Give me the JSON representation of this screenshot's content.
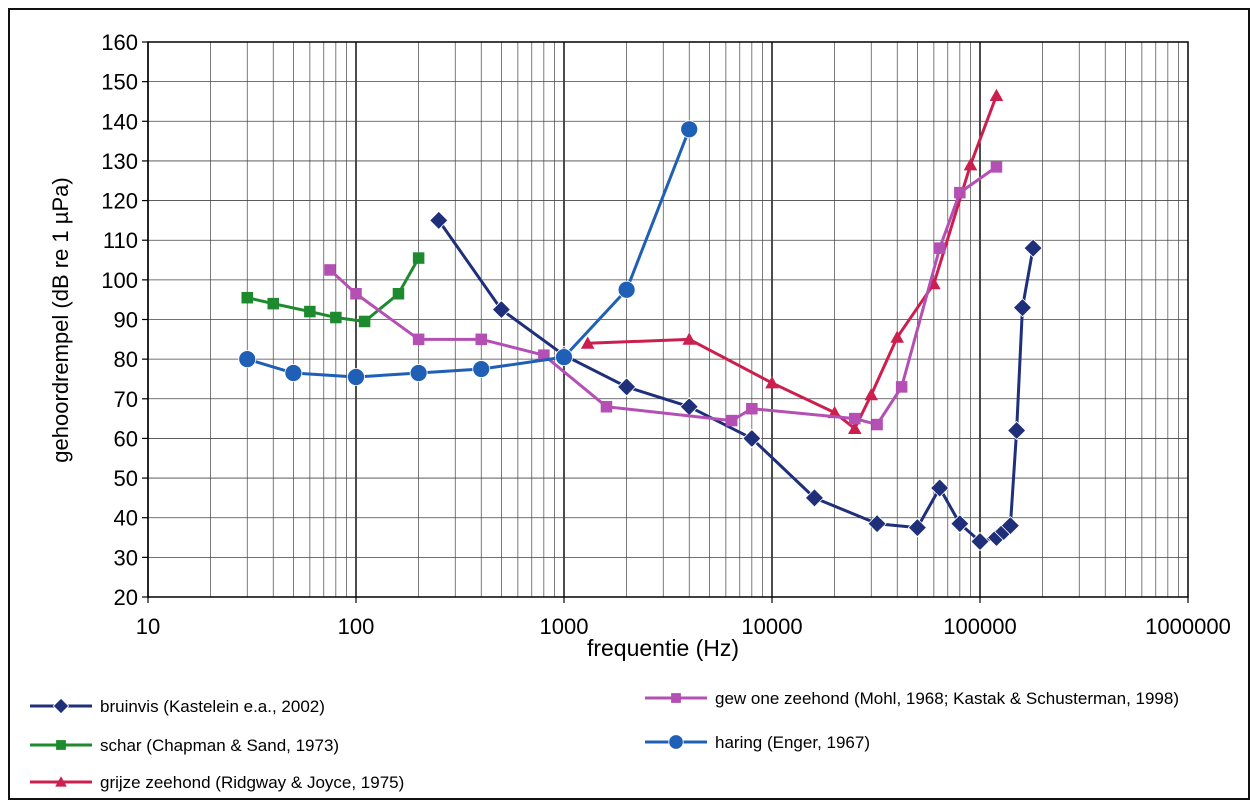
{
  "chart_data": {
    "type": "line",
    "title": "",
    "xlabel": "frequentie (Hz)",
    "ylabel": "gehoordrempel (dB re 1 µPa)",
    "x_scale": "log",
    "xlim": [
      10,
      1000000
    ],
    "ylim": [
      20,
      160
    ],
    "x_ticks": [
      "10",
      "100",
      "1000",
      "10000",
      "100000",
      "1000000"
    ],
    "y_ticks": [
      "20",
      "30",
      "40",
      "50",
      "60",
      "70",
      "80",
      "90",
      "100",
      "110",
      "120",
      "130",
      "140",
      "150",
      "160"
    ],
    "grid": true,
    "legend_position": "bottom",
    "series": [
      {
        "name": "bruinvis (Kastelein e.a., 2002)",
        "color": "#1f2f7a",
        "marker": "diamond",
        "x": [
          250,
          500,
          1000,
          2000,
          4000,
          8000,
          16000,
          32000,
          50000,
          64000,
          80000,
          100000,
          120000,
          130000,
          140000,
          150000,
          160000,
          180000
        ],
        "y": [
          115,
          92.5,
          81,
          73,
          68,
          60,
          45,
          38.5,
          37.5,
          47.5,
          38.5,
          34,
          35,
          36.5,
          38,
          62,
          93,
          108
        ]
      },
      {
        "name": "schar (Chapman & Sand, 1973)",
        "color": "#1e8a2e",
        "marker": "square",
        "x": [
          30,
          40,
          60,
          80,
          110,
          160,
          200
        ],
        "y": [
          95.5,
          94,
          92,
          90.5,
          89.5,
          96.5,
          105.5
        ]
      },
      {
        "name": "grijze zeehond (Ridgway & Joyce, 1975)",
        "color": "#cc1f4f",
        "marker": "triangle",
        "x": [
          1300,
          4000,
          10000,
          20000,
          25000,
          30000,
          40000,
          60000,
          90000,
          120000
        ],
        "y": [
          84,
          85,
          74,
          66.5,
          62.5,
          71,
          85.5,
          99,
          129,
          146.5
        ]
      },
      {
        "name": "gew one zeehond (Mohl, 1968; Kastak & Schusterman, 1998)",
        "color": "#b44fb4",
        "marker": "square",
        "x": [
          75,
          100,
          200,
          400,
          800,
          1600,
          6400,
          8000,
          25000,
          32000,
          42000,
          64000,
          80000,
          120000
        ],
        "y": [
          102.5,
          96.5,
          85,
          85,
          81,
          68,
          64.5,
          67.5,
          65,
          63.5,
          73,
          108,
          122,
          128.5
        ]
      },
      {
        "name": "haring (Enger, 1967)",
        "color": "#1f5fb5",
        "marker": "circle",
        "x": [
          30,
          50,
          100,
          200,
          400,
          1000,
          2000,
          4000
        ],
        "y": [
          80,
          76.5,
          75.5,
          76.5,
          77.5,
          80.5,
          97.5,
          138
        ]
      }
    ]
  }
}
